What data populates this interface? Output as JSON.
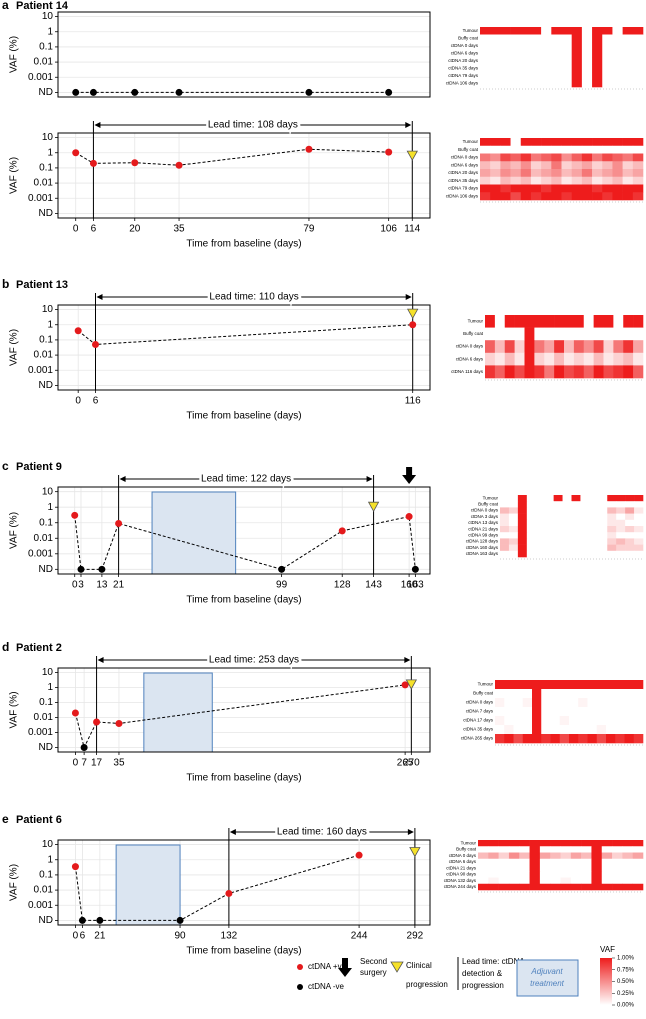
{
  "chart_data": [
    {
      "type": "line",
      "panel_label": "a",
      "title": "Patient 14",
      "y_label": "VAF (%)",
      "log_scale": true,
      "grid": true,
      "x": [
        0,
        6,
        20,
        35,
        79,
        106
      ],
      "values": [
        0.0001,
        0.0001,
        0.0001,
        0.0001,
        0.0001,
        0.0001
      ],
      "colors": [
        "#000000",
        "#000000",
        "#000000",
        "#000000",
        "#000000",
        "#000000"
      ],
      "xlim": [
        -6,
        120
      ],
      "ylim": [
        5e-05,
        20
      ],
      "yticks": [
        {
          "value": 0.0001,
          "label": "ND"
        },
        0.001,
        0.01,
        0.1,
        1,
        10
      ]
    },
    {
      "type": "heatmap",
      "rows": [
        "Tumour",
        "Buffy coat",
        "ctDNA 0 days",
        "ctDNA 6 days",
        "ctDNA 20 days",
        "ctDNA 35 days",
        "ctDNA 79 days",
        "ctDNA 106 days"
      ],
      "values": [
        [
          1,
          1,
          1,
          1,
          1,
          1,
          0,
          1,
          1,
          1,
          0,
          1,
          1,
          0,
          1,
          1
        ],
        [
          0,
          0,
          0,
          0,
          0,
          0,
          0,
          0,
          0,
          1,
          0,
          1,
          0,
          0,
          0,
          0
        ],
        [
          0,
          0,
          0,
          0,
          0,
          0,
          0,
          0,
          0,
          1,
          0,
          1,
          0,
          0,
          0,
          0
        ],
        [
          0,
          0,
          0,
          0,
          0,
          0,
          0,
          0,
          0,
          1,
          0,
          1,
          0,
          0,
          0,
          0
        ],
        [
          0,
          0,
          0,
          0,
          0,
          0,
          0,
          0,
          0,
          1,
          0,
          1,
          0,
          0,
          0,
          0
        ],
        [
          0,
          0,
          0,
          0,
          0,
          0,
          0,
          0,
          0,
          1,
          0,
          1,
          0,
          0,
          0,
          0
        ],
        [
          0,
          0,
          0,
          0,
          0,
          0,
          0,
          0,
          0,
          1,
          0,
          1,
          0,
          0,
          0,
          0
        ],
        [
          0,
          0,
          0,
          0,
          0,
          0,
          0,
          0,
          0,
          1,
          0,
          1,
          0,
          0,
          0,
          0
        ]
      ]
    },
    {
      "type": "line",
      "y_label": "VAF (%)",
      "x_label": "Time from baseline (days)",
      "log_scale": true,
      "grid": true,
      "x": [
        0,
        6,
        20,
        35,
        79,
        106
      ],
      "values": [
        1,
        0.2,
        0.22,
        0.15,
        1.7,
        1.1
      ],
      "colors": [
        "#e41a1c",
        "#e41a1c",
        "#e41a1c",
        "#e41a1c",
        "#e41a1c",
        "#e41a1c"
      ],
      "xlim": [
        -6,
        120
      ],
      "ylim": [
        5e-05,
        20
      ],
      "xticks": [
        0,
        6,
        20,
        35,
        79,
        106,
        114
      ],
      "yticks": [
        {
          "value": 0.0001,
          "label": "ND"
        },
        0.001,
        0.01,
        0.1,
        1,
        10
      ],
      "lead": {
        "start": 6,
        "end": 114,
        "label": "Lead time: 108 days"
      },
      "progression": {
        "x": 114,
        "y": 0.6
      }
    },
    {
      "type": "heatmap",
      "rows": [
        "Tumour",
        "Buffy coat",
        "ctDNA 0 days",
        "ctDNA 6 days",
        "ctDNA 20 days",
        "ctDNA 35 days",
        "ctDNA 79 days",
        "ctDNA 106 days"
      ],
      "values": [
        [
          1,
          1,
          1,
          0,
          1,
          1,
          1,
          1,
          1,
          1,
          1,
          1,
          1,
          1,
          1,
          1
        ],
        [
          0,
          0,
          0,
          0,
          0,
          0,
          0,
          0,
          0,
          0,
          0,
          0,
          0,
          0,
          0,
          0
        ],
        [
          0.6,
          0.5,
          0.8,
          0.7,
          0.9,
          0.6,
          0.7,
          0.8,
          0.5,
          0.7,
          0.9,
          0.6,
          0.8,
          0.7,
          0.6,
          0.8
        ],
        [
          0.3,
          0.2,
          0.4,
          0.3,
          0.5,
          0.2,
          0.3,
          0.6,
          0.2,
          0.3,
          0.4,
          0.2,
          0.3,
          0.5,
          0.2,
          0.3
        ],
        [
          0.4,
          0.3,
          0.5,
          0.4,
          0.6,
          0.3,
          0.4,
          0.5,
          0.3,
          0.4,
          0.6,
          0.3,
          0.4,
          0.5,
          0.3,
          0.4
        ],
        [
          0.2,
          0.1,
          0.3,
          0.2,
          0.3,
          0.1,
          0.2,
          0.3,
          0.1,
          0.2,
          0.3,
          0.1,
          0.2,
          0.3,
          0.1,
          0.2
        ],
        [
          1,
          1,
          0.9,
          1,
          1,
          1,
          0.9,
          1,
          1,
          1,
          1,
          0.9,
          1,
          1,
          1,
          1
        ],
        [
          0.9,
          1,
          1,
          0.8,
          1,
          0.9,
          1,
          1,
          0.9,
          1,
          1,
          1,
          0.9,
          1,
          1,
          0.9
        ]
      ]
    },
    {
      "type": "line",
      "panel_label": "b",
      "title": "Patient 13",
      "y_label": "VAF (%)",
      "x_label": "Time from baseline (days)",
      "log_scale": true,
      "grid": true,
      "x": [
        0,
        6,
        116
      ],
      "values": [
        0.4,
        0.05,
        1
      ],
      "colors": [
        "#e41a1c",
        "#e41a1c",
        "#e41a1c"
      ],
      "xlim": [
        -7,
        122
      ],
      "ylim": [
        5e-05,
        20
      ],
      "xticks": [
        0,
        6,
        116
      ],
      "yticks": [
        {
          "value": 0.0001,
          "label": "ND"
        },
        0.001,
        0.01,
        0.1,
        1,
        10
      ],
      "lead": {
        "start": 6,
        "end": 116,
        "label": "Lead time: 110 days"
      },
      "progression": {
        "x": 116,
        "y": 5
      }
    },
    {
      "type": "heatmap",
      "rows": [
        "Tumour",
        "Buffy coat",
        "ctDNA 0 days",
        "ctDNA 6 days",
        "ctDNA 116 days"
      ],
      "values": [
        [
          1,
          0,
          1,
          1,
          1,
          1,
          1,
          1,
          1,
          1,
          0,
          1,
          1,
          0,
          1,
          1
        ],
        [
          0,
          0,
          0,
          0,
          1,
          0,
          0,
          0,
          0,
          0,
          0,
          0,
          0,
          0,
          0,
          0
        ],
        [
          0.7,
          0.3,
          0.8,
          0.2,
          1,
          0.6,
          0.4,
          0.9,
          0.3,
          0.7,
          0.5,
          0.8,
          0.2,
          0.6,
          0.9,
          0.4
        ],
        [
          0.2,
          0.1,
          0.3,
          0.1,
          1,
          0.2,
          0.1,
          0.3,
          0.1,
          0.2,
          0.1,
          0.3,
          0.1,
          0.2,
          0.3,
          0.1
        ],
        [
          0.9,
          0.7,
          1,
          0.8,
          1,
          0.9,
          0.6,
          1,
          0.8,
          0.9,
          0.7,
          1,
          0.8,
          0.9,
          1,
          0.7
        ]
      ]
    },
    {
      "type": "line",
      "panel_label": "c",
      "title": "Patient 9",
      "y_label": "VAF (%)",
      "x_label": "Time from baseline (days)",
      "log_scale": true,
      "grid": true,
      "x": [
        0,
        3,
        13,
        21,
        99,
        128,
        160,
        163
      ],
      "values": [
        0.3,
        0.0001,
        0.0001,
        0.09,
        0.0001,
        0.03,
        0.25,
        0.0001
      ],
      "colors": [
        "#e41a1c",
        "#000000",
        "#000000",
        "#e41a1c",
        "#000000",
        "#e41a1c",
        "#e41a1c",
        "#000000"
      ],
      "xlim": [
        -8,
        170
      ],
      "ylim": [
        5e-05,
        20
      ],
      "xticks": [
        0,
        3,
        13,
        21,
        99,
        128,
        143,
        160,
        163
      ],
      "yticks": [
        {
          "value": 0.0001,
          "label": "ND"
        },
        0.001,
        0.01,
        0.1,
        1,
        10
      ],
      "adjuvant": [
        37,
        77
      ],
      "lead": {
        "start": 21,
        "end": 143,
        "label": "Lead time: 122 days"
      },
      "progression": {
        "x": 143,
        "y": 1
      },
      "surgery_x": 160
    },
    {
      "type": "heatmap",
      "rows": [
        "Tumour",
        "Buffy coat",
        "ctDNA 0 days",
        "ctDNA 3 days",
        "ctDNA 13 days",
        "ctDNA 21 days",
        "ctDNA 99 days",
        "ctDNA 128 days",
        "ctDNA 160 days",
        "ctDNA 163 days"
      ],
      "values": [
        [
          0,
          0,
          1,
          0,
          0,
          0,
          1,
          0,
          1,
          0,
          0,
          0,
          1,
          1,
          1,
          1
        ],
        [
          0,
          0,
          1,
          0,
          0,
          0,
          0,
          0,
          0,
          0,
          0,
          0,
          0,
          0,
          0,
          0
        ],
        [
          0.3,
          0.2,
          1,
          0,
          0,
          0,
          0,
          0,
          0,
          0,
          0,
          0,
          0.3,
          0.2,
          0.4,
          0.1
        ],
        [
          0.1,
          0,
          1,
          0,
          0,
          0,
          0,
          0,
          0,
          0,
          0,
          0,
          0.1,
          0,
          0.1,
          0
        ],
        [
          0.1,
          0,
          1,
          0,
          0,
          0,
          0,
          0,
          0,
          0,
          0,
          0,
          0.1,
          0.1,
          0,
          0
        ],
        [
          0.2,
          0.1,
          1,
          0,
          0,
          0,
          0,
          0,
          0,
          0,
          0,
          0,
          0.2,
          0.1,
          0.2,
          0.1
        ],
        [
          0,
          0,
          1,
          0,
          0,
          0,
          0,
          0,
          0,
          0,
          0,
          0,
          0.1,
          0,
          0,
          0
        ],
        [
          0.3,
          0.2,
          1,
          0,
          0,
          0,
          0,
          0,
          0,
          0,
          0,
          0,
          0.2,
          0.3,
          0.2,
          0.1
        ],
        [
          0.3,
          0.1,
          1,
          0,
          0,
          0,
          0,
          0,
          0,
          0,
          0,
          0,
          0.3,
          0.2,
          0.2,
          0.2
        ],
        [
          0,
          0,
          1,
          0,
          0,
          0,
          0,
          0,
          0,
          0,
          0,
          0,
          0,
          0,
          0,
          0
        ]
      ]
    },
    {
      "type": "line",
      "panel_label": "d",
      "title": "Patient 2",
      "y_label": "VAF (%)",
      "x_label": "Time from baseline (days)",
      "log_scale": true,
      "grid": true,
      "x": [
        0,
        7,
        17,
        35,
        265
      ],
      "values": [
        0.02,
        0.0001,
        0.005,
        0.004,
        1.5
      ],
      "colors": [
        "#e41a1c",
        "#000000",
        "#e41a1c",
        "#e41a1c",
        "#e41a1c"
      ],
      "xlim": [
        -14,
        285
      ],
      "ylim": [
        5e-05,
        20
      ],
      "xticks": [
        0,
        7,
        17,
        35,
        265,
        270
      ],
      "yticks": [
        {
          "value": 0.0001,
          "label": "ND"
        },
        0.001,
        0.01,
        0.1,
        1,
        10
      ],
      "adjuvant": [
        55,
        110
      ],
      "lead": {
        "start": 17,
        "end": 270,
        "label": "Lead time: 253 days"
      },
      "progression": {
        "x": 270,
        "y": 1.5
      }
    },
    {
      "type": "heatmap",
      "rows": [
        "Tumour",
        "Buffy coat",
        "ctDNA 0 days",
        "ctDNA 7 days",
        "ctDNA 17 days",
        "ctDNA 35 days",
        "ctDNA 265 days"
      ],
      "values": [
        [
          1,
          1,
          1,
          1,
          1,
          1,
          1,
          1,
          1,
          1,
          1,
          1,
          1,
          1,
          1,
          1
        ],
        [
          0,
          0,
          0,
          0,
          1,
          0,
          0,
          0,
          0,
          0,
          0,
          0,
          0,
          0,
          0,
          0
        ],
        [
          0.05,
          0,
          0,
          0.05,
          1,
          0,
          0,
          0,
          0,
          0.05,
          0,
          0,
          0,
          0,
          0,
          0
        ],
        [
          0,
          0,
          0,
          0,
          1,
          0,
          0,
          0,
          0,
          0,
          0,
          0,
          0,
          0,
          0,
          0
        ],
        [
          0.05,
          0,
          0,
          0,
          1,
          0,
          0,
          0.05,
          0,
          0,
          0,
          0,
          0,
          0,
          0,
          0
        ],
        [
          0,
          0.05,
          0,
          0,
          1,
          0,
          0,
          0,
          0,
          0,
          0,
          0.05,
          0,
          0,
          0,
          0
        ],
        [
          0.9,
          1,
          0.8,
          1,
          1,
          0.9,
          1,
          0.8,
          1,
          0.9,
          1,
          0.8,
          1,
          0.9,
          1,
          0.9
        ]
      ]
    },
    {
      "type": "line",
      "panel_label": "e",
      "title": "Patient 6",
      "y_label": "VAF (%)",
      "x_label": "Time from baseline (days)",
      "log_scale": true,
      "grid": true,
      "x": [
        0,
        6,
        21,
        90,
        132,
        244
      ],
      "values": [
        0.35,
        0.0001,
        0.0001,
        0.0001,
        0.006,
        2
      ],
      "colors": [
        "#e41a1c",
        "#000000",
        "#000000",
        "#000000",
        "#e41a1c",
        "#e41a1c"
      ],
      "xlim": [
        -15,
        305
      ],
      "ylim": [
        5e-05,
        20
      ],
      "xticks": [
        0,
        6,
        21,
        90,
        132,
        244,
        292
      ],
      "yticks": [
        {
          "value": 0.0001,
          "label": "ND"
        },
        0.001,
        0.01,
        0.1,
        1,
        10
      ],
      "adjuvant": [
        35,
        90
      ],
      "lead": {
        "start": 132,
        "end": 292,
        "label": "Lead time: 160 days"
      },
      "progression": {
        "x": 292,
        "y": 3
      }
    },
    {
      "type": "heatmap",
      "rows": [
        "Tumour",
        "Buffy coat",
        "ctDNA 0 days",
        "ctDNA 6 days",
        "ctDNA 21 days",
        "ctDNA 90 days",
        "ctDNA 132 days",
        "ctDNA 244 days"
      ],
      "values": [
        [
          1,
          1,
          1,
          1,
          1,
          1,
          1,
          1,
          1,
          1,
          1,
          1,
          1,
          1,
          1,
          1
        ],
        [
          0,
          0,
          0,
          0,
          0,
          1,
          0,
          0,
          0,
          0,
          0,
          1,
          0,
          0,
          0,
          0
        ],
        [
          0.3,
          0.4,
          0.2,
          0.5,
          0.3,
          1,
          0.4,
          0.3,
          0.2,
          0.4,
          0.3,
          1,
          0.4,
          0.2,
          0.3,
          0.4
        ],
        [
          0,
          0,
          0,
          0,
          0,
          1,
          0,
          0,
          0,
          0,
          0,
          1,
          0,
          0,
          0,
          0
        ],
        [
          0,
          0,
          0,
          0,
          0,
          1,
          0,
          0,
          0,
          0,
          0,
          1,
          0,
          0,
          0,
          0
        ],
        [
          0,
          0,
          0,
          0,
          0,
          1,
          0,
          0,
          0,
          0,
          0,
          1,
          0,
          0,
          0,
          0
        ],
        [
          0,
          0.05,
          0,
          0,
          0,
          1,
          0,
          0,
          0.05,
          0,
          0,
          1,
          0,
          0,
          0,
          0
        ],
        [
          1,
          1,
          1,
          1,
          1,
          1,
          1,
          1,
          1,
          1,
          1,
          1,
          1,
          1,
          1,
          1
        ]
      ]
    }
  ],
  "legend": {
    "positive": {
      "label": "ctDNA +ve",
      "color": "#e41a1c"
    },
    "negative": {
      "label": "ctDNA -ve",
      "color": "#000000"
    },
    "surgery": [
      "Second",
      "surgery"
    ],
    "progression": [
      "Clinical",
      "progression"
    ],
    "lead_time": [
      "Lead time: ctDNA",
      "detection &",
      "progression"
    ],
    "adjuvant": [
      "Adjuvant",
      "treatment"
    ],
    "colorbar": {
      "title": "VAF",
      "lim": [
        0,
        1
      ],
      "low_color": "#ffffff",
      "high_color": "#ee1c1c",
      "ticks": [
        {
          "value": 1,
          "label": "1.00%"
        },
        {
          "value": 0.75,
          "label": "0.75%"
        },
        {
          "value": 0.5,
          "label": "0.50%"
        },
        {
          "value": 0.25,
          "label": "0.25%"
        },
        {
          "value": 0,
          "label": "0.00%"
        }
      ]
    }
  }
}
